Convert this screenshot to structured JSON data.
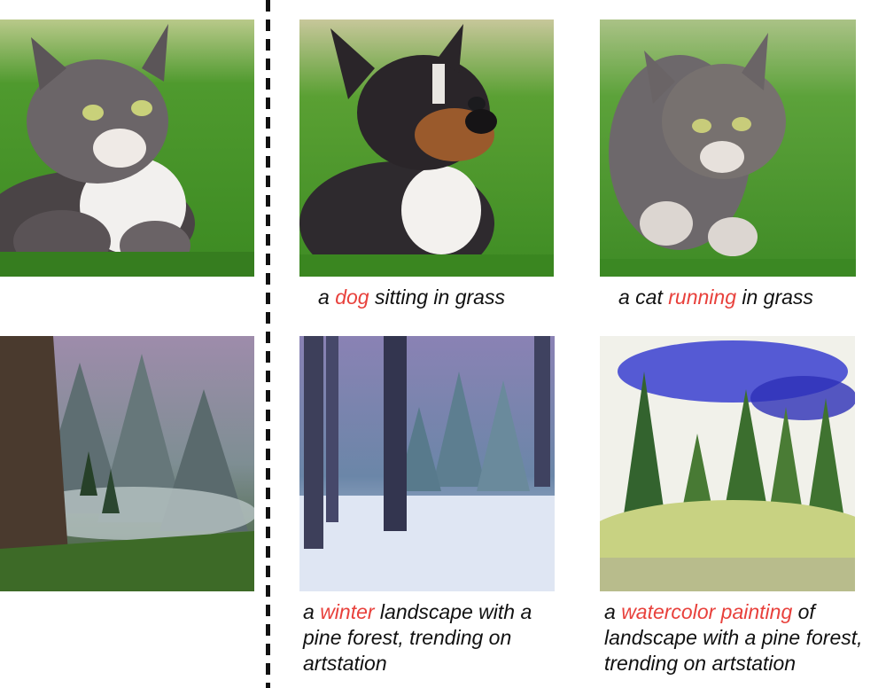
{
  "colors": {
    "highlight": "#e8413c",
    "text": "#111111"
  },
  "panels": [
    {
      "name": "source-cat-image",
      "depicts": "cat-lying-in-grass"
    },
    {
      "name": "edited-dog-image",
      "depicts": "dog-sitting-in-grass"
    },
    {
      "name": "edited-cat-running-image",
      "depicts": "cat-running-in-grass"
    },
    {
      "name": "source-landscape-image",
      "depicts": "misty-mountain-forest-valley"
    },
    {
      "name": "edited-winter-image",
      "depicts": "snowy-pine-forest"
    },
    {
      "name": "edited-watercolor-image",
      "depicts": "watercolor-pine-forest"
    }
  ],
  "captions": {
    "dog": {
      "pre": "a ",
      "hl": "dog",
      "post": " sitting in grass"
    },
    "running": {
      "pre": "a cat ",
      "hl": "running",
      "post": " in grass"
    },
    "winter": {
      "pre": "a ",
      "hl": "winter",
      "post": " landscape with a pine forest, trending on artstation"
    },
    "watercolor": {
      "pre": "a ",
      "hl": "watercolor painting",
      "post": " of landscape with a pine forest, trending on artstation"
    }
  }
}
